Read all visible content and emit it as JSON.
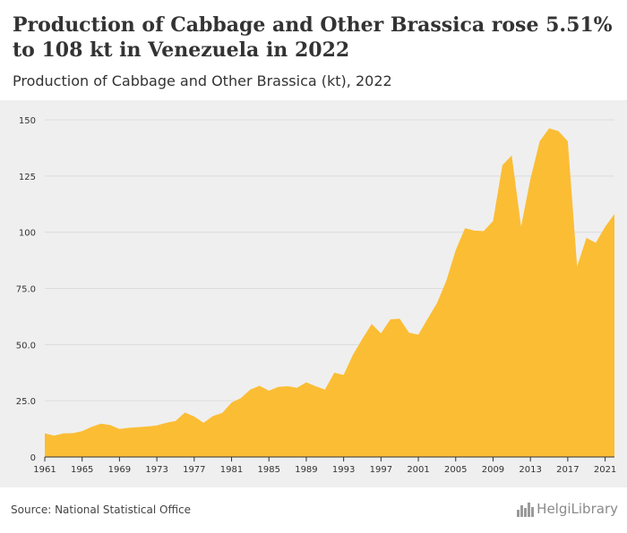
{
  "header": {
    "title": "Production of Cabbage and Other Brassica rose 5.51% to 108 kt in Venezuela in 2022",
    "subtitle": "Production of Cabbage and Other Brassica (kt), 2022"
  },
  "footer": {
    "source": "Source: National Statistical Office",
    "logo_text": "HelgiLibrary"
  },
  "colors": {
    "area_fill": "#fbbd34",
    "background": "#efefef",
    "grid": "#dcdcdc",
    "axis": "#333333"
  },
  "chart_data": {
    "type": "area",
    "title": "Production of Cabbage and Other Brassica rose 5.51% to 108 kt in Venezuela in 2022",
    "subtitle": "Production of Cabbage and Other Brassica (kt), 2022",
    "xlabel": "",
    "ylabel": "",
    "grid": true,
    "xlim": [
      1961,
      2022
    ],
    "ylim": [
      0,
      150
    ],
    "x_ticks": [
      "1961",
      "1965",
      "1969",
      "1973",
      "1977",
      "1981",
      "1985",
      "1989",
      "1993",
      "1997",
      "2001",
      "2005",
      "2009",
      "2013",
      "2017",
      "2021"
    ],
    "y_ticks": [
      {
        "value": 0,
        "label": "0"
      },
      {
        "value": 25,
        "label": "25.0"
      },
      {
        "value": 50,
        "label": "50.0"
      },
      {
        "value": 75,
        "label": "75.0"
      },
      {
        "value": 100,
        "label": "100"
      },
      {
        "value": 125,
        "label": "125"
      },
      {
        "value": 150,
        "label": "150"
      }
    ],
    "series": [
      {
        "name": "Production of Cabbage and Other Brassica (kt)",
        "x": [
          1961,
          1962,
          1963,
          1964,
          1965,
          1966,
          1967,
          1968,
          1969,
          1970,
          1971,
          1972,
          1973,
          1974,
          1975,
          1976,
          1977,
          1978,
          1979,
          1980,
          1981,
          1982,
          1983,
          1984,
          1985,
          1986,
          1987,
          1988,
          1989,
          1990,
          1991,
          1992,
          1993,
          1994,
          1995,
          1996,
          1997,
          1998,
          1999,
          2000,
          2001,
          2002,
          2003,
          2004,
          2005,
          2006,
          2007,
          2008,
          2009,
          2010,
          2011,
          2012,
          2013,
          2014,
          2015,
          2016,
          2017,
          2018,
          2019,
          2020,
          2021,
          2022
        ],
        "values": [
          10.5,
          9.5,
          10.5,
          10.6,
          11.5,
          13.4,
          14.8,
          14.2,
          12.5,
          13.0,
          13.3,
          13.6,
          14.0,
          15.2,
          16.0,
          19.8,
          18.0,
          15.2,
          18.2,
          19.6,
          24.2,
          26.2,
          30.0,
          31.7,
          29.5,
          31.2,
          31.5,
          30.8,
          33.2,
          31.5,
          30.0,
          37.5,
          36.5,
          45.5,
          52.5,
          59.2,
          55.0,
          61.2,
          61.5,
          55.3,
          54.4,
          61.5,
          68.5,
          78.5,
          92.0,
          101.8,
          100.7,
          100.5,
          105.0,
          129.8,
          134.2,
          102.5,
          123.7,
          140.5,
          146.2,
          145.0,
          140.5,
          84.8,
          97.5,
          95.3,
          102.4,
          108.1
        ]
      }
    ]
  }
}
